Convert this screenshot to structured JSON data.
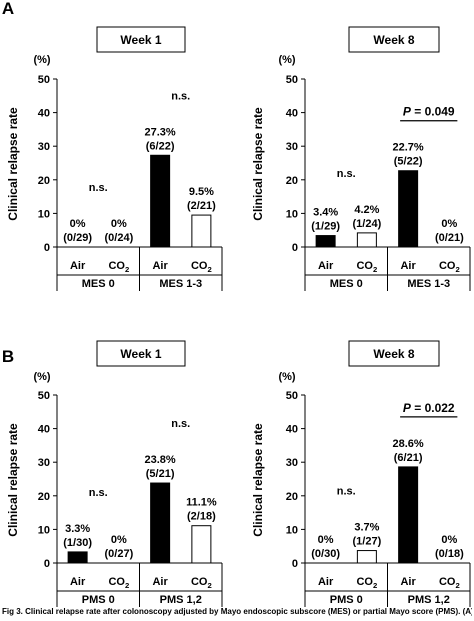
{
  "chart_data": [
    {
      "type": "bar",
      "panel": "A",
      "title": "Week 1",
      "ylabel": "Clinical relapse rate",
      "unit": "(%)",
      "ylim": [
        0,
        50
      ],
      "yticks": [
        0,
        10,
        20,
        30,
        40,
        50
      ],
      "groups": [
        "MES 0",
        "MES 1-3"
      ],
      "categories": [
        "Air",
        "CO2",
        "Air",
        "CO2"
      ],
      "values": [
        0,
        0,
        27.3,
        9.5
      ],
      "labels": [
        [
          "0%",
          "(0/29)"
        ],
        [
          "0%",
          "(0/24)"
        ],
        [
          "27.3%",
          "(6/22)"
        ],
        [
          "9.5%",
          "(2/21)"
        ]
      ],
      "significance": [
        {
          "text": "n.s.",
          "group": 0
        },
        {
          "text": "n.s.",
          "group": 1
        }
      ]
    },
    {
      "type": "bar",
      "panel": "",
      "title": "Week 8",
      "ylabel": "Clinical relapse rate",
      "unit": "(%)",
      "ylim": [
        0,
        50
      ],
      "yticks": [
        0,
        10,
        20,
        30,
        40,
        50
      ],
      "groups": [
        "MES 0",
        "MES 1-3"
      ],
      "categories": [
        "Air",
        "CO2",
        "Air",
        "CO2"
      ],
      "values": [
        3.4,
        4.2,
        22.7,
        0
      ],
      "labels": [
        [
          "3.4%",
          "(1/29)"
        ],
        [
          "4.2%",
          "(1/24)"
        ],
        [
          "22.7%",
          "(5/22)"
        ],
        [
          "0%",
          "(0/21)"
        ]
      ],
      "significance": [
        {
          "text": "n.s.",
          "group": 0
        },
        {
          "text": "P = 0.049",
          "group": 1,
          "bracket": true
        }
      ]
    },
    {
      "type": "bar",
      "panel": "B",
      "title": "Week 1",
      "ylabel": "Clinical relapse rate",
      "unit": "(%)",
      "ylim": [
        0,
        50
      ],
      "yticks": [
        0,
        10,
        20,
        30,
        40,
        50
      ],
      "groups": [
        "PMS 0",
        "PMS 1,2"
      ],
      "categories": [
        "Air",
        "CO2",
        "Air",
        "CO2"
      ],
      "values": [
        3.3,
        0,
        23.8,
        11.1
      ],
      "labels": [
        [
          "3.3%",
          "(1/30)"
        ],
        [
          "0%",
          "(0/27)"
        ],
        [
          "23.8%",
          "(5/21)"
        ],
        [
          "11.1%",
          "(2/18)"
        ]
      ],
      "significance": [
        {
          "text": "n.s.",
          "group": 0
        },
        {
          "text": "n.s.",
          "group": 1
        }
      ]
    },
    {
      "type": "bar",
      "panel": "",
      "title": "Week 8",
      "ylabel": "Clinical relapse rate",
      "unit": "(%)",
      "ylim": [
        0,
        50
      ],
      "yticks": [
        0,
        10,
        20,
        30,
        40,
        50
      ],
      "groups": [
        "PMS 0",
        "PMS 1,2"
      ],
      "categories": [
        "Air",
        "CO2",
        "Air",
        "CO2"
      ],
      "values": [
        0,
        3.7,
        28.6,
        0
      ],
      "labels": [
        [
          "0%",
          "(0/30)"
        ],
        [
          "3.7%",
          "(1/27)"
        ],
        [
          "28.6%",
          "(6/21)"
        ],
        [
          "0%",
          "(0/18)"
        ]
      ],
      "significance": [
        {
          "text": "n.s.",
          "group": 0
        },
        {
          "text": "P = 0.022",
          "group": 1,
          "bracket": true
        }
      ]
    }
  ],
  "colors": {
    "air_fill": "#000000",
    "co2_fill": "#ffffff",
    "stroke": "#000000"
  },
  "caption": "Fig 3. Clinical relapse rate after colonoscopy adjusted by Mayo endoscopic subscore (MES) or partial Mayo score (PMS). (A)"
}
